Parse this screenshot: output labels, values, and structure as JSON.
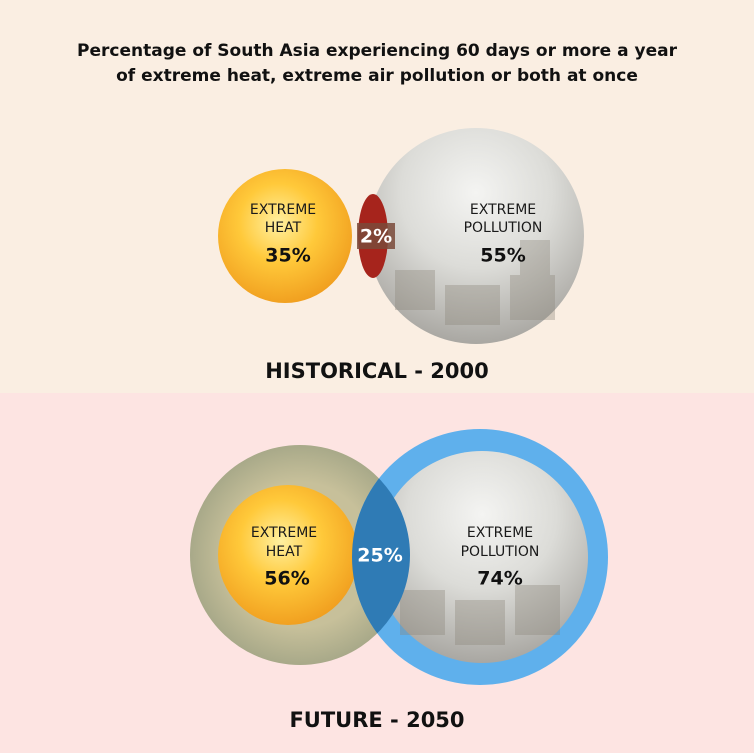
{
  "title": [
    "Percentage of South Asia experiencing 60 days or more a year",
    "of extreme heat, extreme air pollution or both at once"
  ],
  "panels": [
    {
      "label": "HISTORICAL - 2000",
      "heat": {
        "name": [
          "EXTREME",
          "HEAT"
        ],
        "value": "35%"
      },
      "pollution": {
        "name": [
          "EXTREME",
          "POLLUTION"
        ],
        "value": "55%"
      },
      "overlap": "2%"
    },
    {
      "label": "FUTURE - 2050",
      "heat": {
        "name": [
          "EXTREME",
          "HEAT"
        ],
        "value": "56%"
      },
      "pollution": {
        "name": [
          "EXTREME",
          "POLLUTION"
        ],
        "value": "74%"
      },
      "overlap": "25%"
    }
  ]
}
